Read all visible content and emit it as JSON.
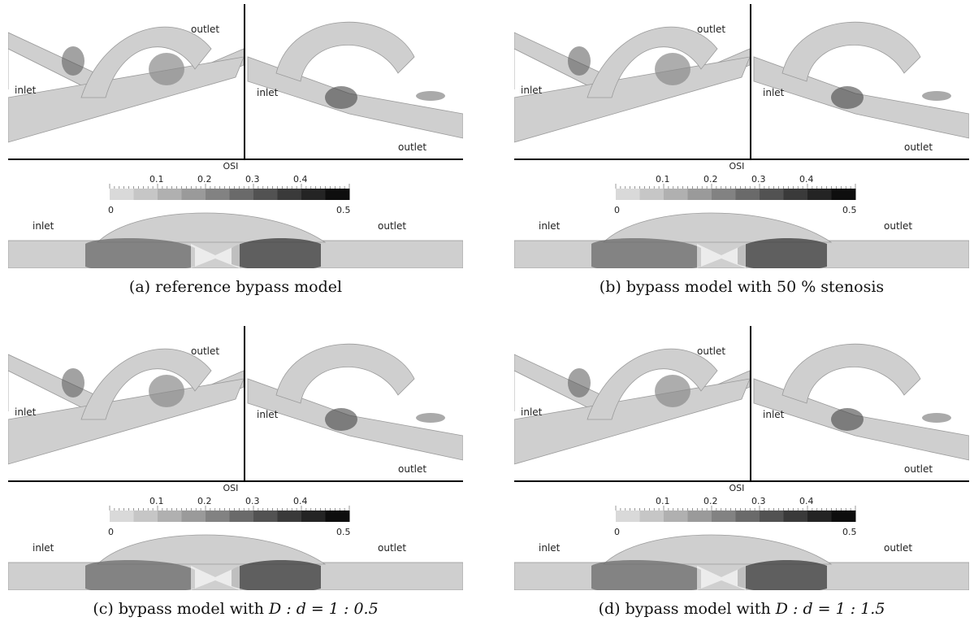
{
  "figure": {
    "panels": [
      {
        "id": "a",
        "caption": "(a) reference bypass model",
        "labels": {
          "top_left_inlet": "inlet",
          "top_left_outlet": "outlet",
          "top_right_inlet": "inlet",
          "top_right_outlet": "outlet",
          "bottom_inlet": "inlet",
          "bottom_outlet": "outlet"
        },
        "colorbar": {
          "title": "OSI",
          "ticks": [
            "0.1",
            "0.2",
            "0.3",
            "0.4"
          ],
          "min": "0",
          "max": "0.5"
        }
      },
      {
        "id": "b",
        "caption": "(b) bypass model with 50 % stenosis",
        "labels": {
          "top_left_inlet": "inlet",
          "top_left_outlet": "outlet",
          "top_right_inlet": "inlet",
          "top_right_outlet": "outlet",
          "bottom_inlet": "inlet",
          "bottom_outlet": "outlet"
        },
        "colorbar": {
          "title": "OSI",
          "ticks": [
            "0.1",
            "0.2",
            "0.3",
            "0.4"
          ],
          "min": "0",
          "max": "0.5"
        }
      },
      {
        "id": "c",
        "caption_prefix": "(c) bypass model with",
        "caption_math": "D : d = 1 : 0.5",
        "labels": {
          "top_left_inlet": "inlet",
          "top_left_outlet": "outlet",
          "top_right_inlet": "inlet",
          "top_right_outlet": "outlet",
          "bottom_inlet": "inlet",
          "bottom_outlet": "outlet"
        },
        "colorbar": {
          "title": "OSI",
          "ticks": [
            "0.1",
            "0.2",
            "0.3",
            "0.4"
          ],
          "min": "0",
          "max": "0.5"
        }
      },
      {
        "id": "d",
        "caption_prefix": "(d) bypass model with",
        "caption_math": "D : d = 1 : 1.5",
        "labels": {
          "top_left_inlet": "inlet",
          "top_left_outlet": "outlet",
          "top_right_inlet": "inlet",
          "top_right_outlet": "outlet",
          "bottom_inlet": "inlet",
          "bottom_outlet": "outlet"
        },
        "colorbar": {
          "title": "OSI",
          "ticks": [
            "0.1",
            "0.2",
            "0.3",
            "0.4"
          ],
          "min": "0",
          "max": "0.5"
        }
      }
    ],
    "colorbar_colors": [
      "#d9d9d9",
      "#c6c6c6",
      "#b0b0b0",
      "#9a9a9a",
      "#828282",
      "#6a6a6a",
      "#525252",
      "#3a3a3a",
      "#242424",
      "#0e0e0e"
    ]
  }
}
